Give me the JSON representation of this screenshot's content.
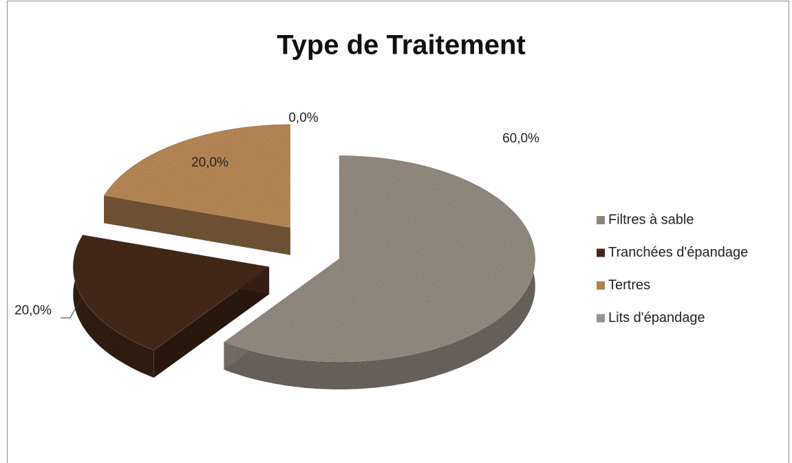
{
  "chart_data": {
    "type": "pie3d",
    "title": "Type de Traitement",
    "categories": [
      "Filtres à sable",
      "Tranchées d'épandage",
      "Tertres",
      "Lits d'épandage"
    ],
    "values": [
      60,
      20,
      20,
      0
    ],
    "value_labels": [
      "60,0%",
      "20,0%",
      "20,0%",
      "0,0%"
    ],
    "colors": [
      "#a3988c",
      "#4b2d1d",
      "#c9955f",
      "#a9a9b2"
    ],
    "legend": "right"
  }
}
